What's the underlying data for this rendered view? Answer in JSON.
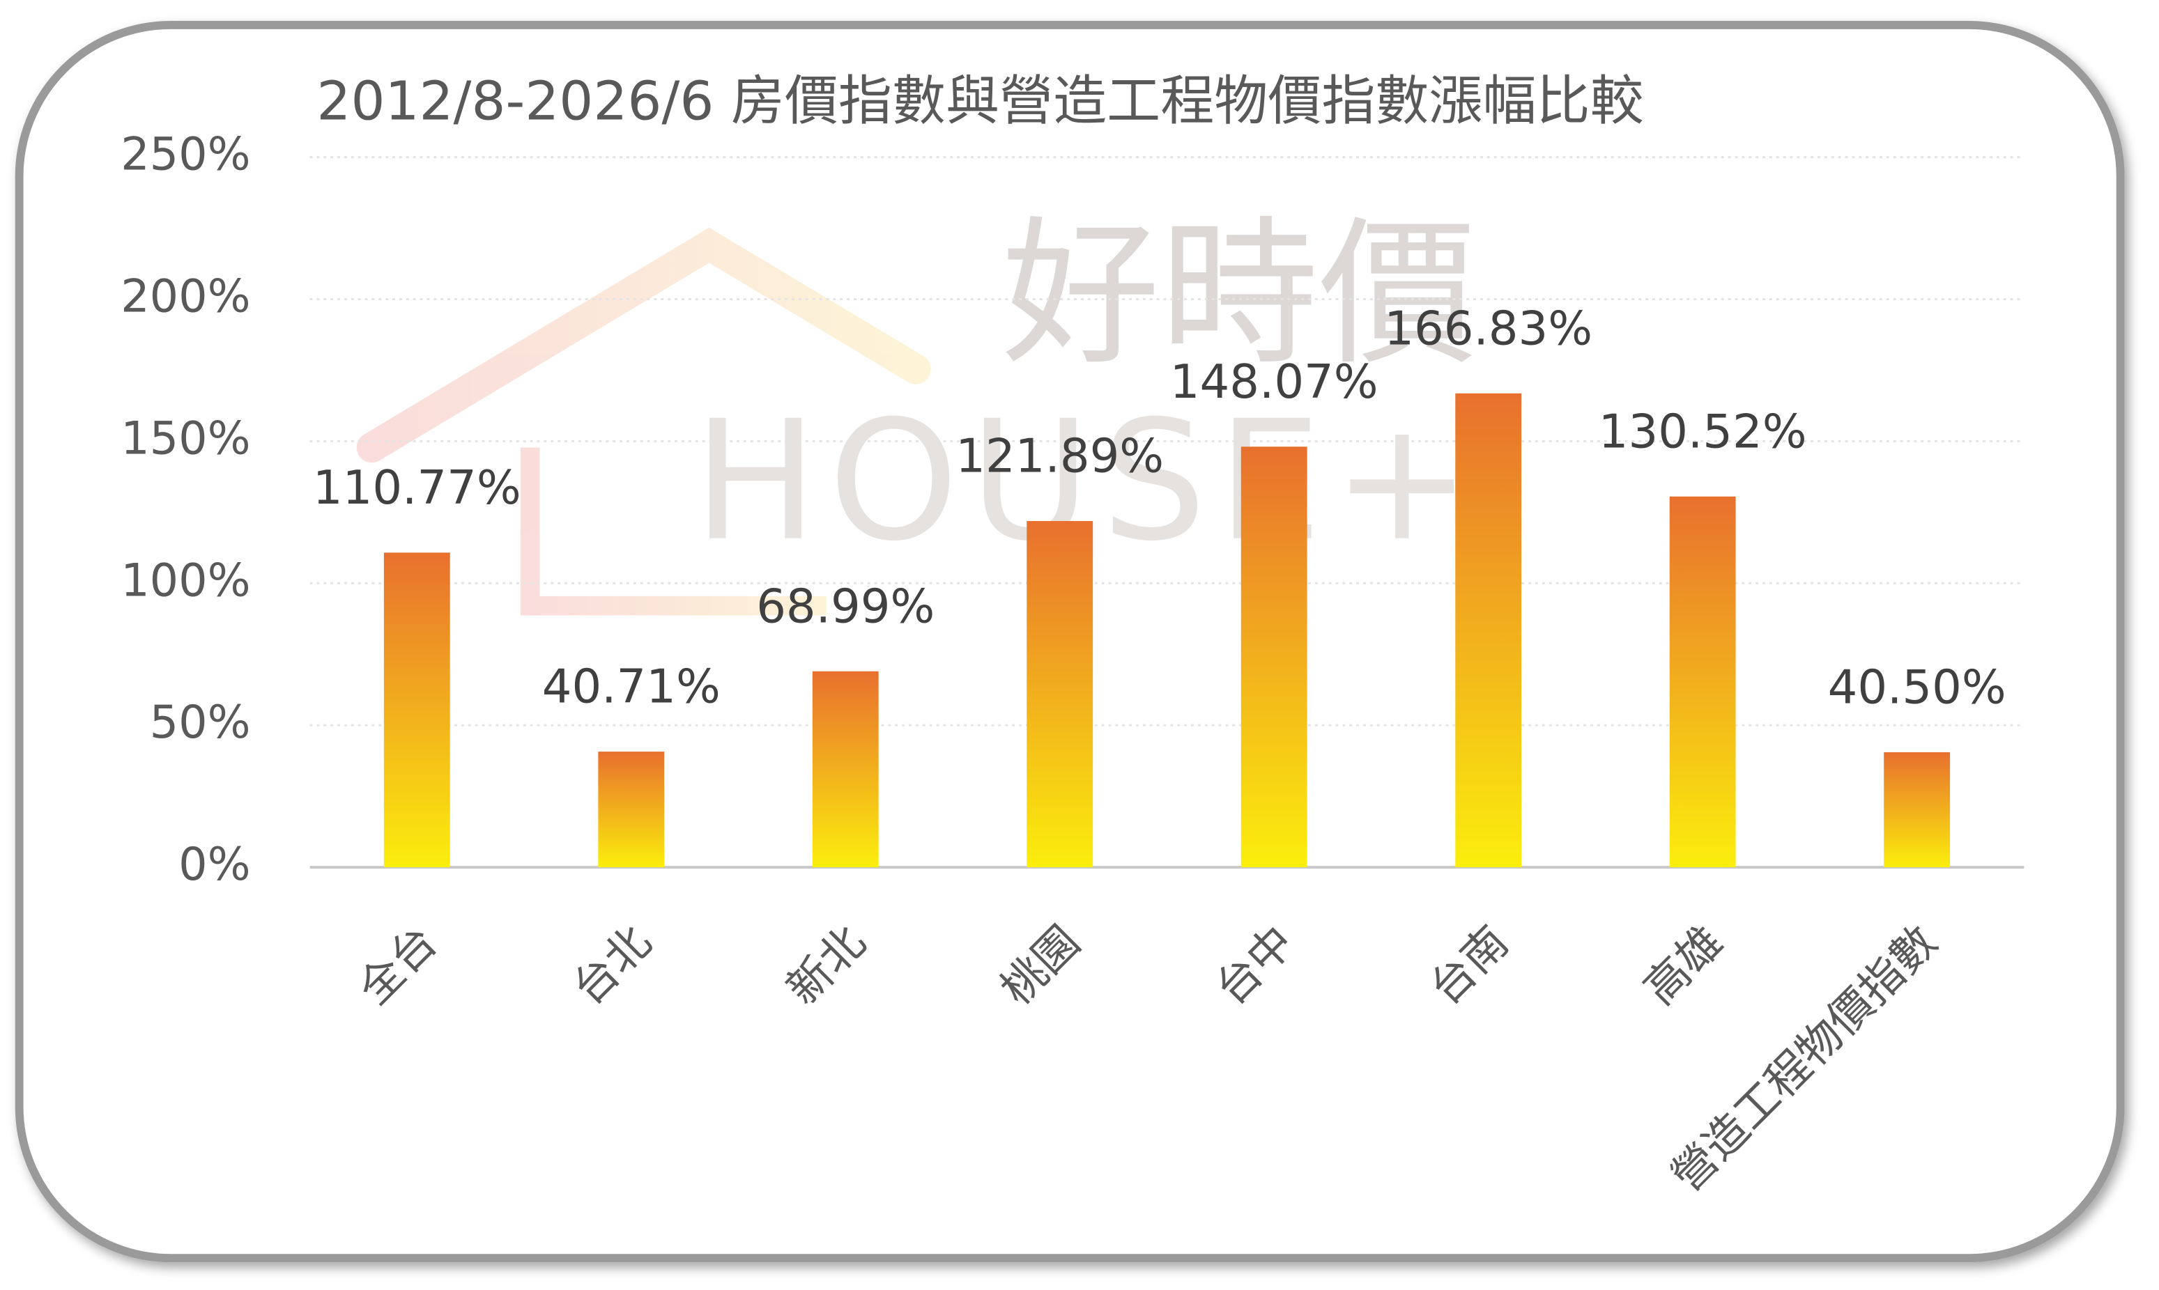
{
  "chart_data": {
    "type": "bar",
    "title": "2012/8-2026/6 房價指數與營造工程物價指數漲幅比較",
    "watermark": {
      "chinese": "好時價",
      "english": "HOUSE+"
    },
    "categories": [
      "全台",
      "台北",
      "新北",
      "桃園",
      "台中",
      "台南",
      "高雄",
      "營造工程物價指數"
    ],
    "values": [
      110.77,
      40.71,
      68.99,
      121.89,
      148.07,
      166.83,
      130.52,
      40.5
    ],
    "value_labels": [
      "110.77%",
      "40.71%",
      "68.99%",
      "121.89%",
      "148.07%",
      "166.83%",
      "130.52%",
      "40.50%"
    ],
    "color": [
      "#e8702e",
      "#fbee0c"
    ],
    "ylim": [
      0,
      250
    ],
    "yticks": [
      {
        "value": 0,
        "label": "0%"
      },
      {
        "value": 50,
        "label": "50%"
      },
      {
        "value": 100,
        "label": "100%"
      },
      {
        "value": 150,
        "label": "150%"
      },
      {
        "value": 200,
        "label": "200%"
      },
      {
        "value": 250,
        "label": "250%"
      }
    ],
    "grid": true
  }
}
